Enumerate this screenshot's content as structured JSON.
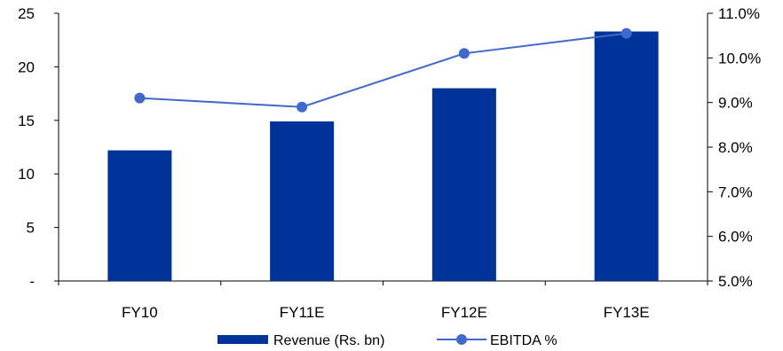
{
  "chart_data": {
    "type": "bar",
    "categories": [
      "FY10",
      "FY11E",
      "FY12E",
      "FY13E"
    ],
    "series": [
      {
        "name": "Revenue (Rs. bn)",
        "type": "bar",
        "axis": "left",
        "values": [
          12.2,
          14.9,
          18.0,
          23.3
        ]
      },
      {
        "name": "EBITDA %",
        "type": "line",
        "axis": "right",
        "values": [
          9.1,
          8.9,
          10.1,
          10.55
        ]
      }
    ],
    "left_axis": {
      "range": [
        0,
        25
      ],
      "ticks": [
        0,
        5,
        10,
        15,
        20,
        25
      ],
      "tick_labels": [
        "-",
        "5",
        "10",
        "15",
        "20",
        "25"
      ]
    },
    "right_axis": {
      "range": [
        5,
        11
      ],
      "ticks": [
        5,
        6,
        7,
        8,
        9,
        10,
        11
      ],
      "tick_labels": [
        "5.0%",
        "6.0%",
        "7.0%",
        "8.0%",
        "9.0%",
        "10.0%",
        "11.0%"
      ]
    },
    "title": "",
    "xlabel": "",
    "grid": false,
    "legend_position": "bottom",
    "colors": {
      "bar": "#003399",
      "line": "#4169CC",
      "axis": "#000000"
    }
  }
}
